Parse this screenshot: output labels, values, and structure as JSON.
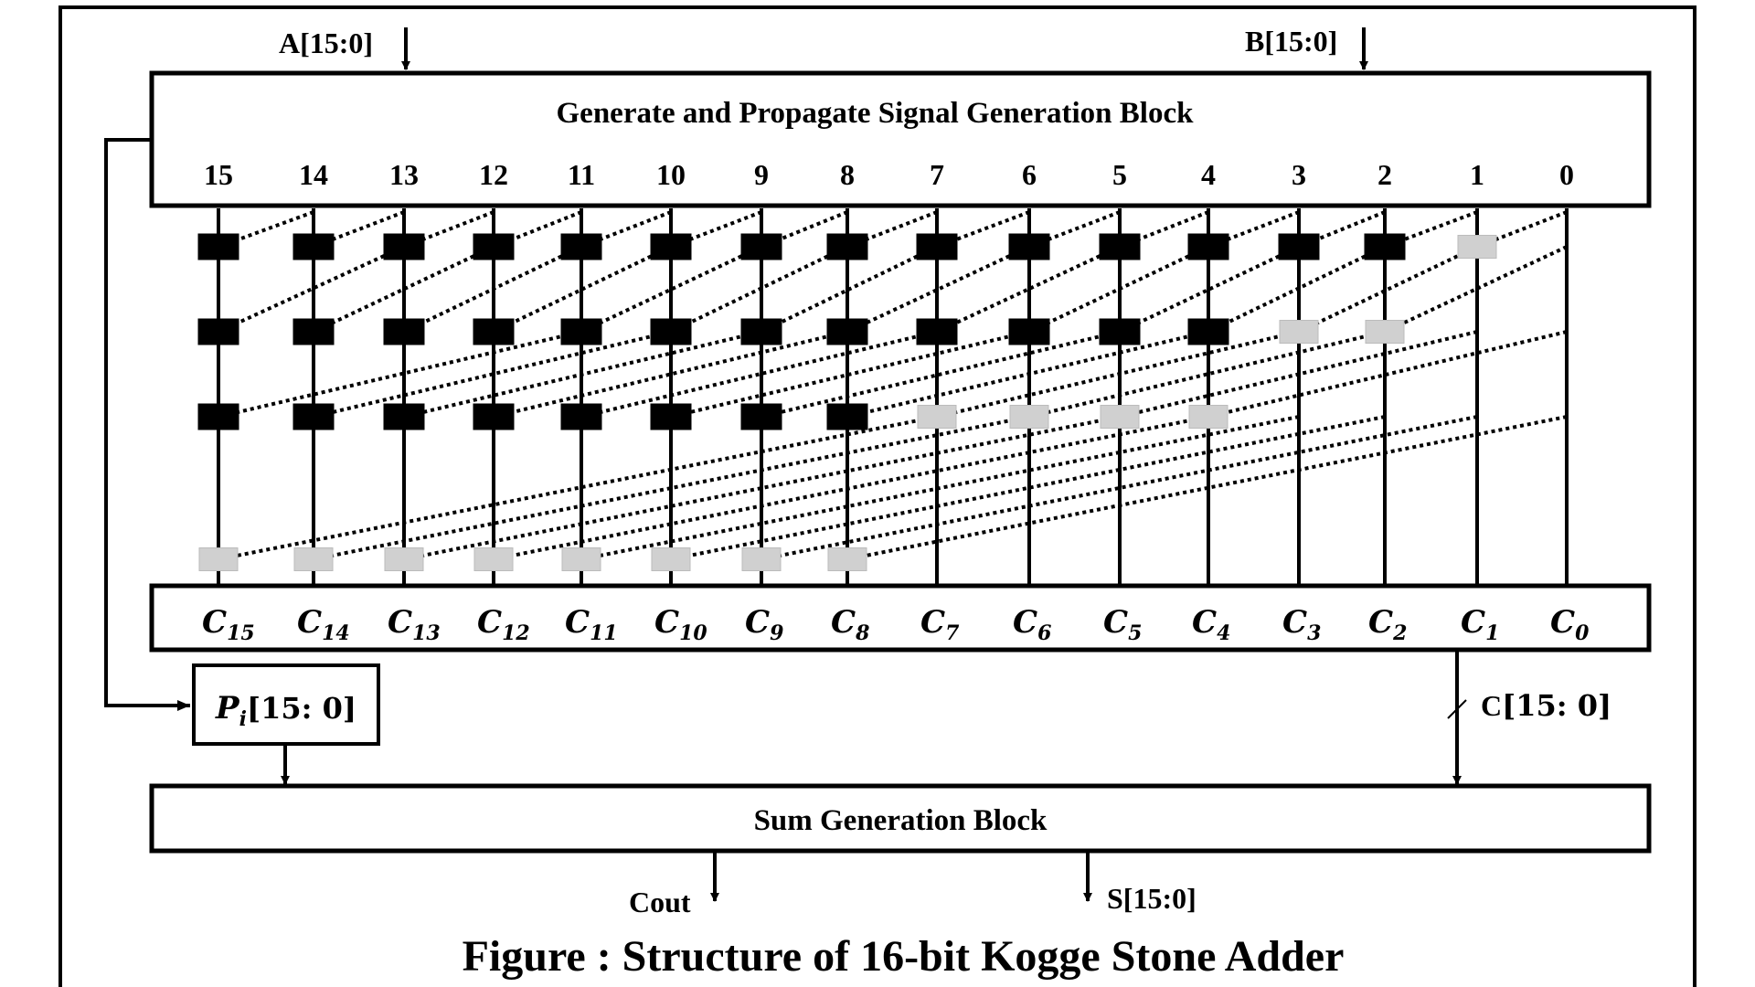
{
  "inputs": {
    "a_label": "A[15:0]",
    "b_label": "B[15:0]"
  },
  "gp_block": {
    "title": "Generate and Propagate Signal Generation Block"
  },
  "bit_indices": [
    "15",
    "14",
    "13",
    "12",
    "11",
    "10",
    "9",
    "8",
    "7",
    "6",
    "5",
    "4",
    "3",
    "2",
    "1",
    "0"
  ],
  "carry_labels": [
    {
      "base": "C",
      "sub": "15"
    },
    {
      "base": "C",
      "sub": "14"
    },
    {
      "base": "C",
      "sub": "13"
    },
    {
      "base": "C",
      "sub": "12"
    },
    {
      "base": "C",
      "sub": "11"
    },
    {
      "base": "C",
      "sub": "10"
    },
    {
      "base": "C",
      "sub": "9"
    },
    {
      "base": "C",
      "sub": "8"
    },
    {
      "base": "C",
      "sub": "7"
    },
    {
      "base": "C",
      "sub": "6"
    },
    {
      "base": "C",
      "sub": "5"
    },
    {
      "base": "C",
      "sub": "4"
    },
    {
      "base": "C",
      "sub": "3"
    },
    {
      "base": "C",
      "sub": "2"
    },
    {
      "base": "C",
      "sub": "1"
    },
    {
      "base": "C",
      "sub": "0"
    }
  ],
  "pi_box": {
    "base": "P",
    "sub": "i",
    "range": "[15: 0]"
  },
  "c_bus": {
    "base": "C",
    "range": "[15: 0]"
  },
  "sum_block": {
    "title": "Sum Generation Block"
  },
  "outputs": {
    "cout": "Cout",
    "sum": "S[15:0]"
  },
  "caption": "Figure : Structure of 16-bit Kogge Stone Adder",
  "stages": [
    {
      "span": 1,
      "black_cells": 14,
      "gray_cells": 1
    },
    {
      "span": 2,
      "black_cells": 12,
      "gray_cells": 2
    },
    {
      "span": 4,
      "black_cells": 8,
      "gray_cells": 4
    },
    {
      "span": 8,
      "black_cells": 0,
      "gray_cells": 8
    }
  ],
  "colors": {
    "black_cell": "#000000",
    "gray_cell": "#d0d0d0",
    "line": "#000000"
  }
}
